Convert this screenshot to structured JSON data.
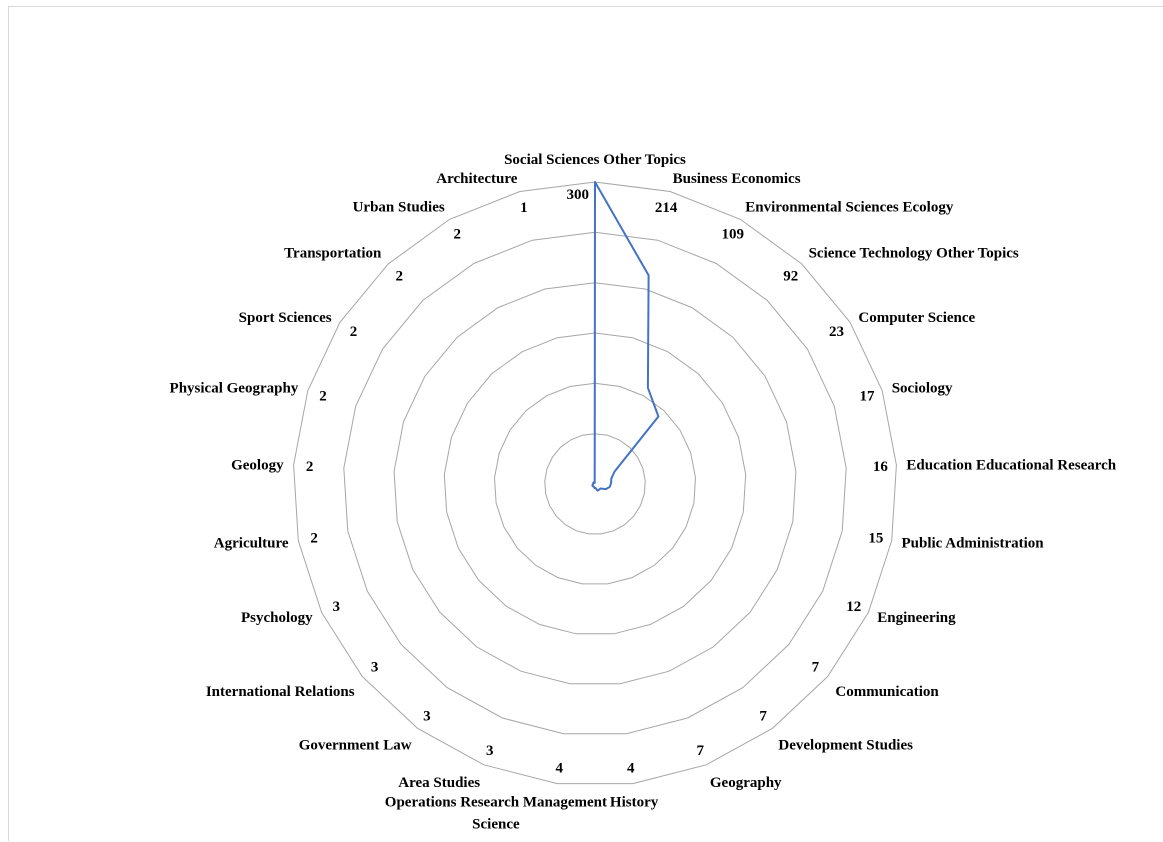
{
  "chart_data": {
    "type": "radar",
    "title": "",
    "categories": [
      "Social Sciences Other Topics",
      "Business Economics",
      "Environmental Sciences Ecology",
      "Science Technology Other Topics",
      "Computer Science",
      "Sociology",
      "Education Educational Research",
      "Public Administration",
      "Engineering",
      "Communication",
      "Development Studies",
      "Geography",
      "History",
      "Operations Research Management Science",
      "Area Studies",
      "Government Law",
      "International Relations",
      "Psychology",
      "Agriculture",
      "Geology",
      "Physical Geography",
      "Sport Sciences",
      "Transportation",
      "Urban Studies",
      "Architecture"
    ],
    "series": [
      {
        "values": [
          300,
          214,
          109,
          92,
          23,
          17,
          16,
          15,
          12,
          7,
          7,
          7,
          4,
          4,
          3,
          3,
          3,
          3,
          2,
          2,
          2,
          2,
          2,
          2,
          1
        ],
        "color": "#4472c4"
      }
    ],
    "axis_max_label": "300",
    "rmax": 300,
    "rings": 6,
    "grid": true,
    "gridline_color": "#a6a6a6"
  }
}
